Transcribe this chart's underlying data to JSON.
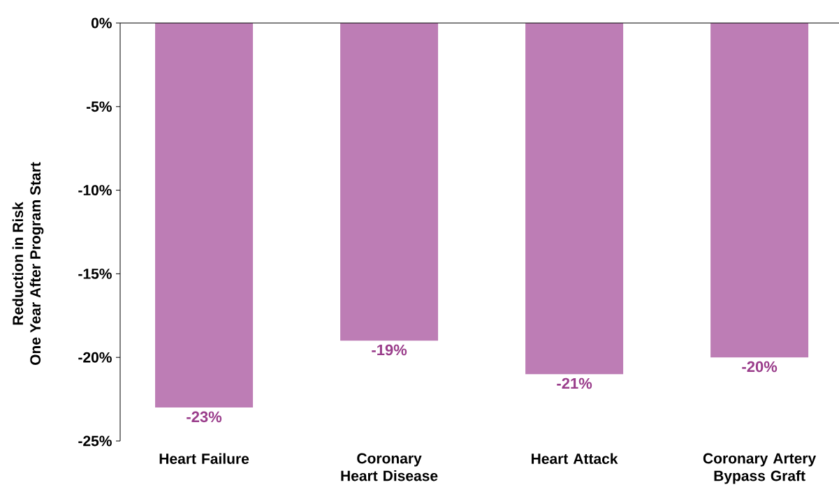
{
  "chart_data": {
    "type": "bar",
    "ylabel": "Reduction in Risk One Year After Program Start",
    "categories": [
      "Heart Failure",
      "Coronary Heart Disease",
      "Heart Attack",
      "Coronary Artery Bypass Graft"
    ],
    "values": [
      -23,
      -19,
      -21,
      -20
    ],
    "value_labels": [
      "-23%",
      "-19%",
      "-21%",
      "-20%"
    ],
    "color": "#bd7db5",
    "ylim": [
      -25,
      0
    ],
    "yticks": [
      {
        "value": 0,
        "label": "0%"
      },
      {
        "value": -5,
        "label": "-5%"
      },
      {
        "value": -10,
        "label": "-10%"
      },
      {
        "value": -15,
        "label": "-15%"
      },
      {
        "value": -20,
        "label": "-20%"
      },
      {
        "value": -25,
        "label": "-25%"
      }
    ]
  }
}
